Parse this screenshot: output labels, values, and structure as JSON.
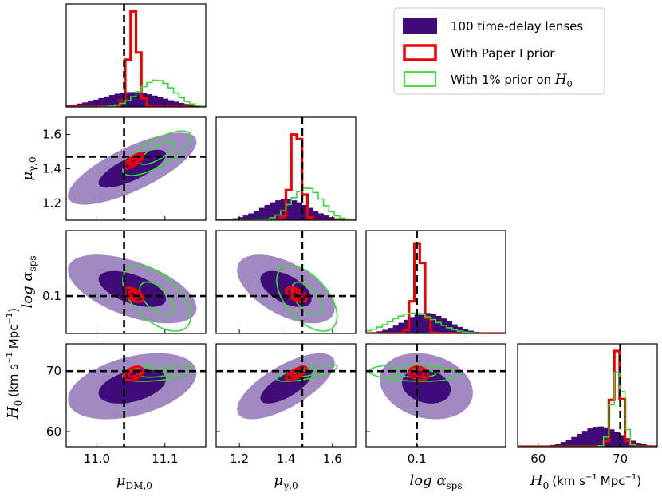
{
  "chart_data": {
    "type": "corner",
    "parameters": [
      {
        "key": "mu_dm",
        "label": "μ_DM,0",
        "range": [
          10.955,
          11.16
        ],
        "ticks": [
          11.0,
          11.1
        ],
        "tick_labels": [
          "11.0",
          "11.1"
        ],
        "truth": 11.04
      },
      {
        "key": "mu_g",
        "label": "μ_γ,0",
        "range": [
          1.1,
          1.7
        ],
        "ticks": [
          1.2,
          1.4,
          1.6
        ],
        "tick_labels": [
          "1.2",
          "1.4",
          "1.6"
        ],
        "truth": 1.47
      },
      {
        "key": "log_asps",
        "label": "log α_sps",
        "range": [
          0.02,
          0.24
        ],
        "ticks": [
          0.1
        ],
        "tick_labels": [
          "0.1"
        ],
        "truth": 0.1
      },
      {
        "key": "H0",
        "label": "H_0 (km s^-1 Mpc^-1)",
        "range": [
          57.5,
          74.5
        ],
        "ticks": [
          60,
          70
        ],
        "tick_labels": [
          "60",
          "70"
        ],
        "truth": 70.0
      }
    ],
    "row_labels": [
      "μ_γ,0",
      "log α_sps",
      "H_0 (km s^-1 Mpc^-1)"
    ],
    "col_labels": [
      "μ_DM,0",
      "μ_γ,0",
      "log α_sps",
      "H_0 (km s^-1 Mpc^-1)"
    ],
    "axis_text": {
      "mu_dm": "μ",
      "mu_dm_sub": "DM,0",
      "mu_g": "μ",
      "mu_g_sub": "γ,0",
      "log": "log α",
      "sps_sub": "sps",
      "h0": "H",
      "h0_sub": "0",
      "h0_units": "(km s",
      "h0_units2": "Mpc",
      "exp": "−1",
      "close": ")"
    },
    "series": [
      {
        "name": "100 time-delay lenses",
        "style": "filled",
        "color_inner": "#3f0b78",
        "color_outer": "#a189c2",
        "marginals": {
          "mu_dm": {
            "mean": 11.052,
            "sd": 0.045
          },
          "mu_g": {
            "mean": 1.4,
            "sd": 0.1
          },
          "log_asps": {
            "mean": 0.115,
            "sd": 0.035
          },
          "H0": {
            "mean": 67.5,
            "sd": 2.6
          }
        }
      },
      {
        "name": "With Paper I prior",
        "style": "step",
        "color": "#ee0000",
        "marginals": {
          "mu_dm": {
            "mean": 11.054,
            "sd": 0.007
          },
          "mu_g": {
            "mean": 1.445,
            "sd": 0.022
          },
          "log_asps": {
            "mean": 0.103,
            "sd": 0.0075
          },
          "H0": {
            "mean": 69.6,
            "sd": 0.55
          }
        }
      },
      {
        "name": "With 1% prior on H0",
        "style": "step",
        "color": "#33dd33",
        "marginals": {
          "mu_dm": {
            "mean": 11.088,
            "sd": 0.025
          },
          "mu_g": {
            "mean": 1.49,
            "sd": 0.065
          },
          "log_asps": {
            "mean": 0.095,
            "sd": 0.035
          },
          "H0": {
            "mean": 69.7,
            "sd": 0.7
          }
        }
      }
    ],
    "legend": {
      "placement": "top-right",
      "entries": [
        "100 time-delay lenses",
        "With Paper I prior",
        "With 1% prior on H0"
      ]
    }
  },
  "legend_text": {
    "entry1": "100 time-delay lenses",
    "entry2": "With Paper I prior",
    "entry3a": "With 1% prior on ",
    "entry3b": "H",
    "entry3c": "0"
  }
}
